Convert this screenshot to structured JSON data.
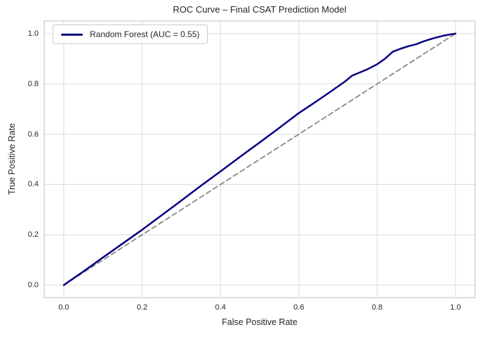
{
  "chart_data": {
    "type": "line",
    "title": "ROC Curve – Final CSAT Prediction Model",
    "xlabel": "False Positive Rate",
    "ylabel": "True Positive Rate",
    "xlim": [
      -0.05,
      1.05
    ],
    "ylim": [
      -0.05,
      1.05
    ],
    "xtick_labels": [
      "0.0",
      "0.2",
      "0.4",
      "0.6",
      "0.8",
      "1.0"
    ],
    "ytick_labels": [
      "0.0",
      "0.2",
      "0.4",
      "0.6",
      "0.8",
      "1.0"
    ],
    "grid": true,
    "legend_position": "upper left",
    "auc": 0.55,
    "colors": {
      "background": "#ffffff",
      "grid": "#dcdcdc",
      "spine": "#c9c9c9",
      "text": "#262626",
      "roc_line": "#000080",
      "chance_line": "#888888"
    },
    "series": [
      {
        "name": "Random Forest",
        "label": "Random Forest (AUC = 0.55)",
        "color": "#000080",
        "line_style": "solid",
        "line_width": 2.5,
        "x": [
          0.0,
          0.02,
          0.05,
          0.1,
          0.15,
          0.2,
          0.25,
          0.3,
          0.35,
          0.4,
          0.45,
          0.5,
          0.55,
          0.6,
          0.63,
          0.65,
          0.68,
          0.7,
          0.72,
          0.735,
          0.755,
          0.775,
          0.8,
          0.82,
          0.84,
          0.86,
          0.88,
          0.9,
          0.92,
          0.945,
          0.97,
          1.0
        ],
        "y": [
          0.0,
          0.022,
          0.054,
          0.11,
          0.165,
          0.22,
          0.278,
          0.336,
          0.395,
          0.452,
          0.51,
          0.567,
          0.625,
          0.684,
          0.715,
          0.736,
          0.768,
          0.79,
          0.812,
          0.832,
          0.845,
          0.858,
          0.878,
          0.9,
          0.928,
          0.94,
          0.95,
          0.958,
          0.97,
          0.982,
          0.992,
          1.0
        ]
      },
      {
        "name": "chance-diagonal",
        "label": "",
        "color": "#888888",
        "line_style": "dashed",
        "line_width": 1.8,
        "x": [
          0.0,
          1.0
        ],
        "y": [
          0.0,
          1.0
        ]
      }
    ]
  }
}
